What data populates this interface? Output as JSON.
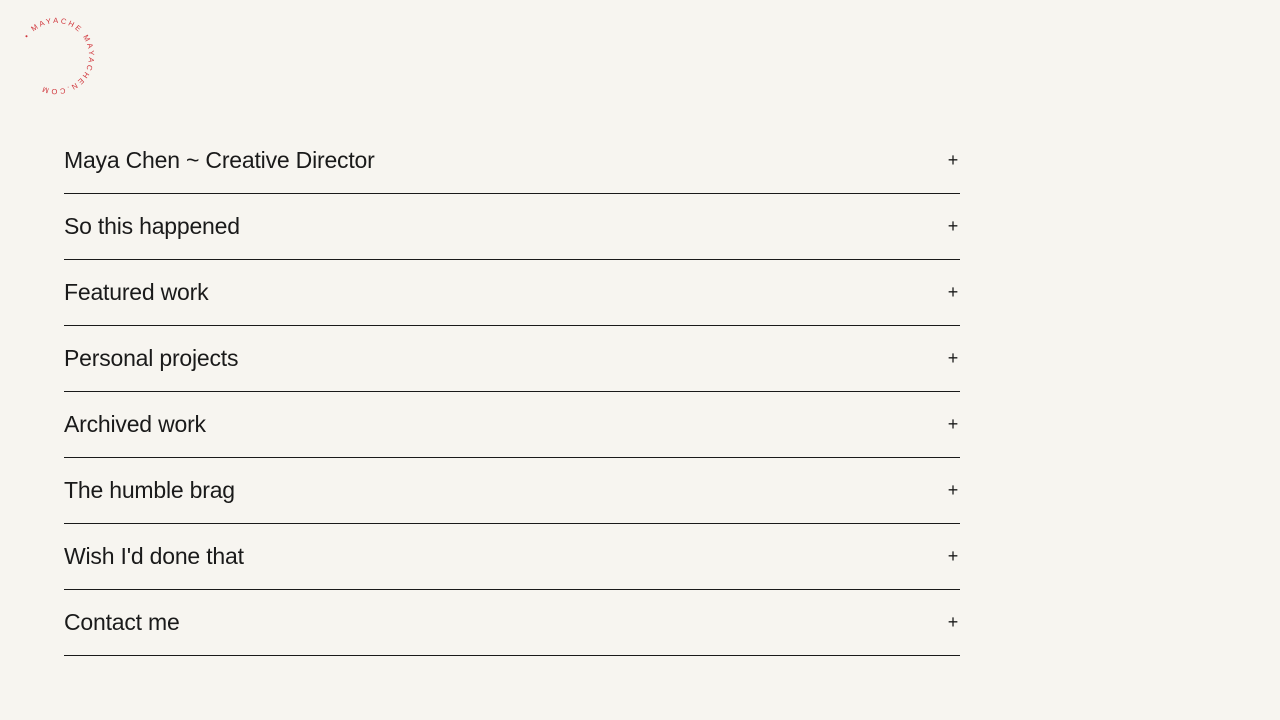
{
  "logo": {
    "text": "• MAYACHE MAYACHEN.COM",
    "color": "#d0343a"
  },
  "sections": [
    {
      "label": "Maya Chen ~ Creative Director",
      "icon": "+"
    },
    {
      "label": "So this happened",
      "icon": "+"
    },
    {
      "label": "Featured work",
      "icon": "+"
    },
    {
      "label": "Personal projects",
      "icon": "+"
    },
    {
      "label": "Archived work",
      "icon": "+"
    },
    {
      "label": "The humble brag",
      "icon": "+"
    },
    {
      "label": "Wish I'd done that",
      "icon": "+"
    },
    {
      "label": "Contact me",
      "icon": "+"
    }
  ]
}
